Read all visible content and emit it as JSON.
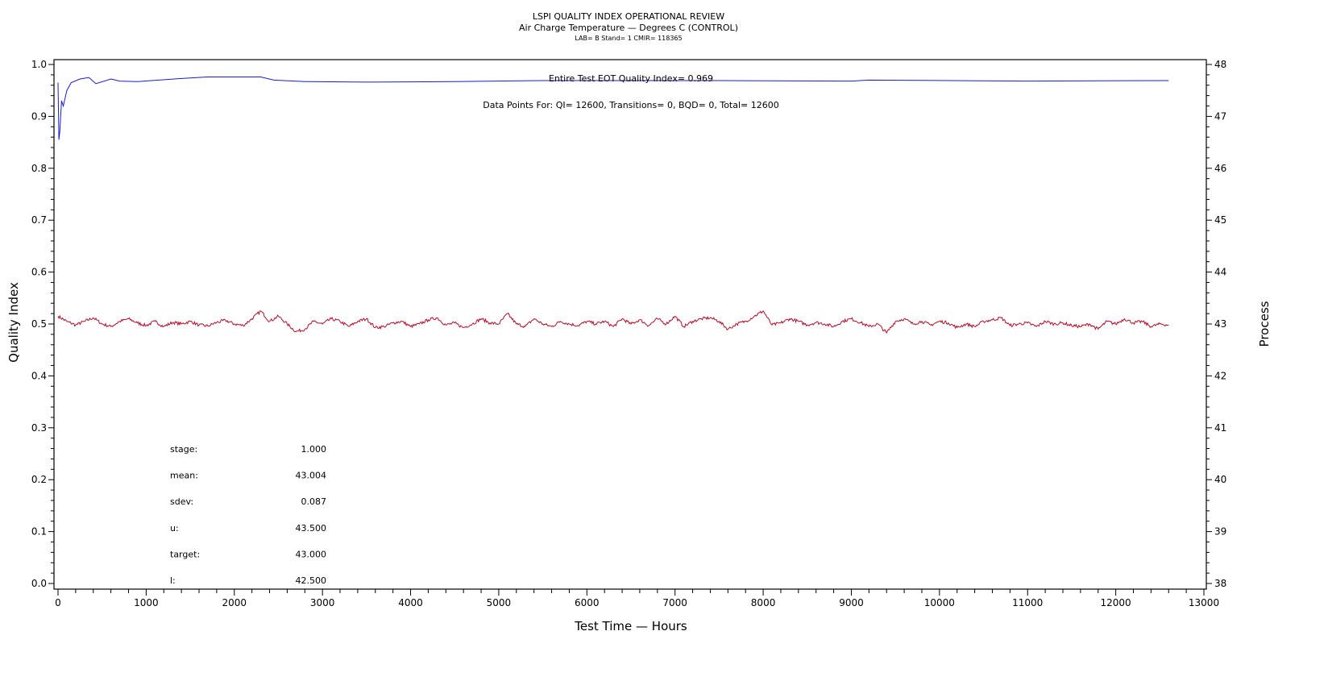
{
  "chart_data": {
    "type": "line",
    "title": "LSPI QUALITY INDEX OPERATIONAL REVIEW",
    "subtitle": "Air Charge Temperature — Degrees C (CONTROL)",
    "subtitle2": "LAB= B Stand= 1 CMIR= 118365",
    "xlabel": "Test Time — Hours",
    "ylabel": "Quality Index",
    "y2label": "Process",
    "xlim": [
      0,
      13000
    ],
    "ylim": [
      0.0,
      1.0
    ],
    "y2lim": [
      38,
      48
    ],
    "xticks": [
      "0",
      "1000",
      "2000",
      "3000",
      "4000",
      "5000",
      "6000",
      "7000",
      "8000",
      "9000",
      "10000",
      "11000",
      "12000",
      "13000"
    ],
    "yticks": [
      "0.0",
      "0.1",
      "0.2",
      "0.3",
      "0.4",
      "0.5",
      "0.6",
      "0.7",
      "0.8",
      "0.9",
      "1.0"
    ],
    "y2ticks": [
      "38",
      "39",
      "40",
      "41",
      "42",
      "43",
      "44",
      "45",
      "46",
      "47",
      "48"
    ],
    "grid": false,
    "annotations": {
      "eot": "Entire Test EOT Quality Index=   0.969",
      "points": "Data Points For: QI= 12600, Transitions=     0, BQD=     0, Total= 12600"
    },
    "stats": [
      {
        "label": "stage:",
        "value": "1.000"
      },
      {
        "label": "mean:",
        "value": "43.004"
      },
      {
        "label": "sdev:",
        "value": "0.087"
      },
      {
        "label": "u:",
        "value": "43.500"
      },
      {
        "label": "target:",
        "value": "43.000"
      },
      {
        "label": "l:",
        "value": "42.500"
      }
    ],
    "series": [
      {
        "name": "Quality Index",
        "axis": "left",
        "color": "#1a1acc",
        "x": [
          0,
          10,
          20,
          40,
          60,
          100,
          150,
          250,
          350,
          430,
          600,
          700,
          900,
          1400,
          1700,
          2300,
          2450,
          2800,
          3500,
          4500,
          5500,
          7500,
          9000,
          9200,
          11000,
          12600
        ],
        "y": [
          0.965,
          0.855,
          0.87,
          0.93,
          0.92,
          0.95,
          0.965,
          0.972,
          0.975,
          0.963,
          0.972,
          0.968,
          0.967,
          0.973,
          0.976,
          0.976,
          0.97,
          0.967,
          0.966,
          0.967,
          0.969,
          0.969,
          0.968,
          0.97,
          0.968,
          0.969
        ]
      },
      {
        "name": "Process",
        "axis": "right",
        "color": "#b0102a",
        "x_start": 0,
        "x_step": 100,
        "y": [
          43.15,
          43.05,
          42.98,
          43.05,
          43.12,
          43.0,
          42.95,
          43.05,
          43.1,
          43.02,
          42.97,
          43.05,
          42.95,
          43.03,
          43.0,
          43.05,
          42.98,
          42.96,
          43.03,
          43.07,
          43.0,
          42.97,
          43.1,
          43.25,
          43.05,
          43.15,
          43.0,
          42.85,
          42.9,
          43.05,
          43.0,
          43.1,
          43.05,
          42.95,
          43.05,
          43.1,
          42.93,
          42.95,
          43.02,
          43.05,
          42.95,
          43.0,
          43.08,
          43.12,
          42.98,
          43.02,
          42.93,
          43.0,
          43.1,
          43.02,
          43.0,
          43.2,
          43.0,
          42.95,
          43.1,
          43.0,
          42.95,
          43.05,
          43.0,
          42.97,
          43.05,
          43.0,
          43.05,
          42.95,
          43.1,
          43.0,
          43.08,
          42.97,
          43.1,
          43.0,
          43.15,
          42.95,
          43.05,
          43.1,
          43.12,
          43.05,
          42.9,
          43.0,
          43.05,
          43.15,
          43.25,
          42.98,
          43.02,
          43.1,
          43.05,
          42.98,
          43.03,
          43.0,
          42.95,
          43.05,
          43.1,
          43.03,
          42.95,
          43.0,
          42.83,
          43.05,
          43.1,
          43.0,
          43.05,
          42.98,
          43.05,
          43.02,
          42.93,
          43.0,
          42.95,
          43.05,
          43.08,
          43.12,
          42.97,
          43.0,
          43.02,
          42.95,
          43.05,
          43.0,
          43.02,
          42.97,
          42.95,
          43.0,
          42.9,
          43.05,
          43.0,
          43.1,
          43.02,
          43.05,
          42.95,
          43.0,
          42.98
        ]
      }
    ]
  }
}
